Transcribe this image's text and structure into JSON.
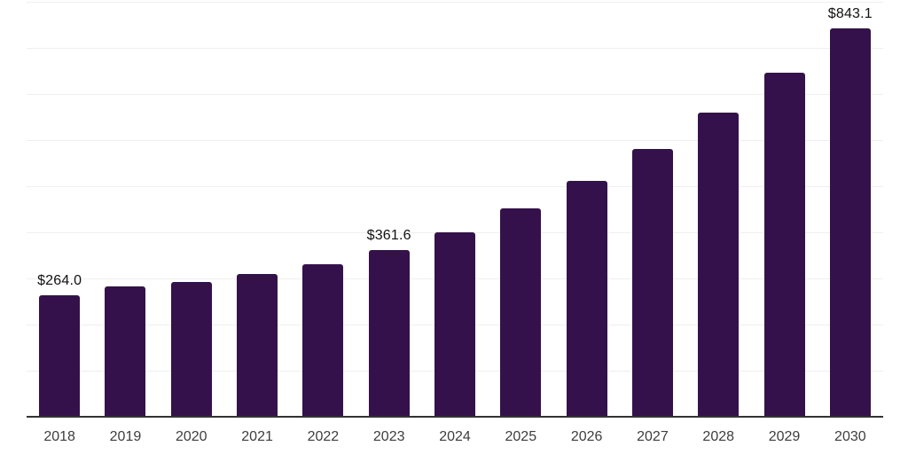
{
  "chart_data": {
    "type": "bar",
    "title": "",
    "xlabel": "",
    "ylabel": "",
    "categories": [
      "2018",
      "2019",
      "2020",
      "2021",
      "2022",
      "2023",
      "2024",
      "2025",
      "2026",
      "2027",
      "2028",
      "2029",
      "2030"
    ],
    "values": [
      264.0,
      282.0,
      293.0,
      309.0,
      331.0,
      361.6,
      400.0,
      452.0,
      511.0,
      581.0,
      660.0,
      747.0,
      843.1
    ],
    "data_labels": [
      "$264.0",
      null,
      null,
      null,
      null,
      "$361.6",
      null,
      null,
      null,
      null,
      null,
      null,
      "$843.1"
    ],
    "ylim": [
      0,
      900
    ],
    "grid_step": 100,
    "grid": "horizontal gridlines on, no y-axis tick labels",
    "legend": "none",
    "colors": {
      "bar": "#35114B",
      "grid_line": "#efefef",
      "axis_line": "#333333",
      "data_label": "#111111",
      "tick_label": "#3d3d3d",
      "background": "#ffffff"
    }
  }
}
